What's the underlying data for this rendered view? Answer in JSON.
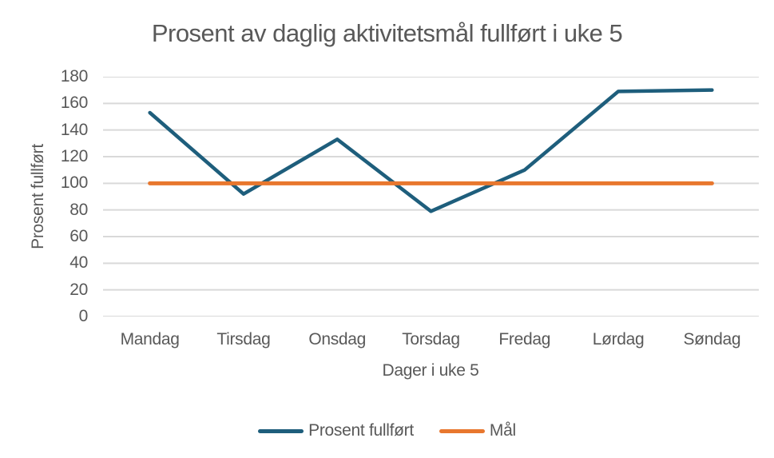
{
  "chart_data": {
    "type": "line",
    "title": "Prosent av daglig aktivitetsmål fullført i uke 5",
    "xlabel": "Dager i uke 5",
    "ylabel": "Prosent fullført",
    "categories": [
      "Mandag",
      "Tirsdag",
      "Onsdag",
      "Torsdag",
      "Fredag",
      "Lørdag",
      "Søndag"
    ],
    "series": [
      {
        "name": "Prosent fullført",
        "values": [
          153,
          92,
          133,
          79,
          110,
          169,
          170
        ],
        "color": "#1E5E7C",
        "stroke_width": 4.5
      },
      {
        "name": "Mål",
        "values": [
          100,
          100,
          100,
          100,
          100,
          100,
          100
        ],
        "color": "#E8772E",
        "stroke_width": 5
      }
    ],
    "ylim": [
      0,
      180
    ],
    "ytick_step": 20,
    "grid": true,
    "legend_position": "bottom"
  },
  "colors": {
    "text": "#595959",
    "gridline": "#D9D9D9",
    "background": "#FFFFFF"
  }
}
